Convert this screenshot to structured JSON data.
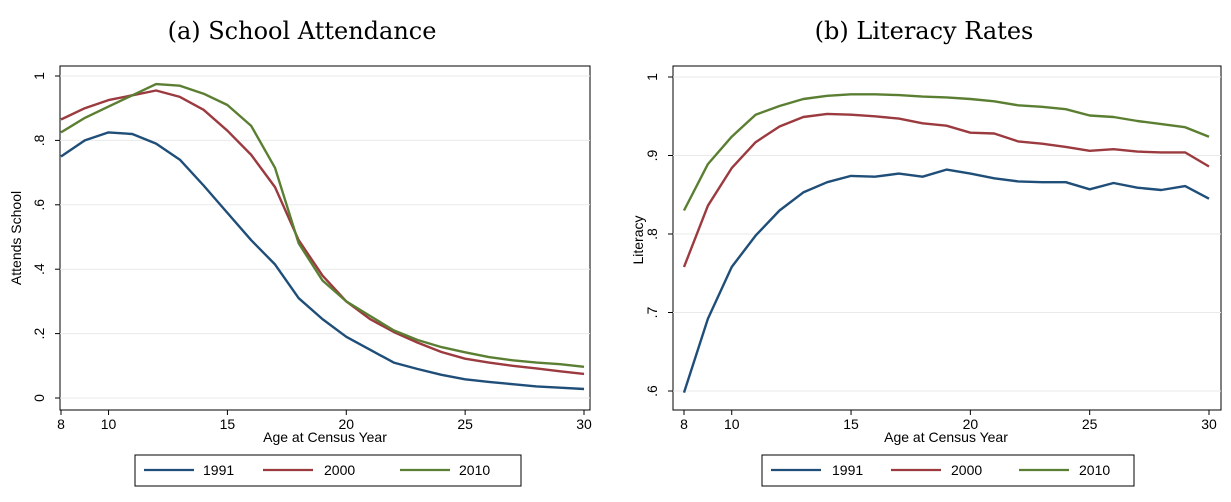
{
  "chart_data": [
    {
      "type": "line",
      "title": "(a) School Attendance",
      "xlabel": "Age at Census Year",
      "ylabel": "Attends School",
      "xlim": [
        8,
        30
      ],
      "ylim": [
        0,
        1
      ],
      "xticks": [
        8,
        10,
        15,
        20,
        25,
        30
      ],
      "yticks": [
        0,
        0.2,
        0.4,
        0.6,
        0.8,
        1
      ],
      "ytick_labels": [
        "0",
        ".2",
        ".4",
        ".6",
        ".8",
        "1"
      ],
      "grid": true,
      "legend_position": "bottom",
      "x": [
        8,
        9,
        10,
        11,
        12,
        13,
        14,
        15,
        16,
        17,
        18,
        19,
        20,
        21,
        22,
        23,
        24,
        25,
        26,
        27,
        28,
        29,
        30
      ],
      "series": [
        {
          "name": "1991",
          "color": "#1f4e79",
          "values": [
            0.75,
            0.8,
            0.825,
            0.82,
            0.79,
            0.74,
            0.66,
            0.575,
            0.49,
            0.415,
            0.31,
            0.245,
            0.19,
            0.15,
            0.11,
            0.09,
            0.072,
            0.058,
            0.05,
            0.043,
            0.036,
            0.032,
            0.028
          ]
        },
        {
          "name": "2000",
          "color": "#9b3a3f",
          "values": [
            0.865,
            0.9,
            0.925,
            0.94,
            0.955,
            0.935,
            0.895,
            0.83,
            0.755,
            0.655,
            0.49,
            0.38,
            0.3,
            0.245,
            0.205,
            0.172,
            0.143,
            0.122,
            0.11,
            0.1,
            0.092,
            0.083,
            0.075
          ]
        },
        {
          "name": "2010",
          "color": "#5b7f32",
          "values": [
            0.825,
            0.87,
            0.905,
            0.94,
            0.975,
            0.97,
            0.945,
            0.91,
            0.845,
            0.715,
            0.48,
            0.365,
            0.3,
            0.255,
            0.21,
            0.18,
            0.158,
            0.142,
            0.127,
            0.117,
            0.11,
            0.105,
            0.097
          ]
        }
      ]
    },
    {
      "type": "line",
      "title": "(b) Literacy Rates",
      "xlabel": "Age at Census Year",
      "ylabel": "Literacy",
      "xlim": [
        8,
        30
      ],
      "ylim": [
        0.6,
        1
      ],
      "xticks": [
        8,
        10,
        15,
        20,
        25,
        30
      ],
      "yticks": [
        0.6,
        0.7,
        0.8,
        0.9,
        1
      ],
      "ytick_labels": [
        ".6",
        ".7",
        ".8",
        ".9",
        "1"
      ],
      "grid": true,
      "legend_position": "bottom",
      "x": [
        8,
        9,
        10,
        11,
        12,
        13,
        14,
        15,
        16,
        17,
        18,
        19,
        20,
        21,
        22,
        23,
        24,
        25,
        26,
        27,
        28,
        29,
        30
      ],
      "series": [
        {
          "name": "1991",
          "color": "#1f4e79",
          "values": [
            0.598,
            0.692,
            0.758,
            0.798,
            0.83,
            0.853,
            0.866,
            0.874,
            0.873,
            0.877,
            0.873,
            0.882,
            0.877,
            0.871,
            0.867,
            0.866,
            0.866,
            0.857,
            0.865,
            0.859,
            0.856,
            0.861,
            0.845
          ]
        },
        {
          "name": "2000",
          "color": "#9b3a3f",
          "values": [
            0.758,
            0.836,
            0.884,
            0.917,
            0.937,
            0.949,
            0.953,
            0.952,
            0.95,
            0.947,
            0.941,
            0.938,
            0.929,
            0.928,
            0.918,
            0.915,
            0.911,
            0.906,
            0.908,
            0.905,
            0.904,
            0.904,
            0.886
          ]
        },
        {
          "name": "2010",
          "color": "#5b7f32",
          "values": [
            0.83,
            0.889,
            0.924,
            0.952,
            0.963,
            0.972,
            0.976,
            0.978,
            0.978,
            0.977,
            0.975,
            0.974,
            0.972,
            0.969,
            0.964,
            0.962,
            0.959,
            0.951,
            0.949,
            0.944,
            0.94,
            0.936,
            0.924
          ]
        }
      ]
    }
  ]
}
